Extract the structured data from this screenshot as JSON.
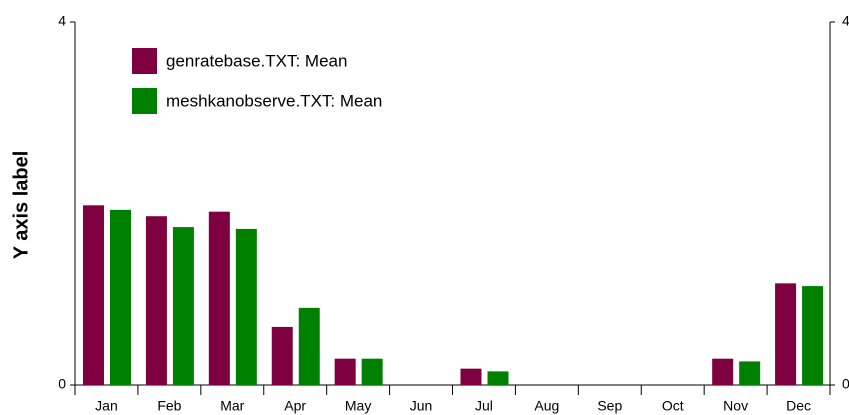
{
  "chart_data": {
    "type": "bar",
    "y_label": "Y axis label",
    "categories": [
      "Jan",
      "Feb",
      "Mar",
      "Apr",
      "May",
      "Jun",
      "Jul",
      "Aug",
      "Sep",
      "Oct",
      "Nov",
      "Dec"
    ],
    "series": [
      {
        "name": "genratebase.TXT: Mean",
        "color": "#7f0040",
        "values": [
          1.98,
          1.86,
          1.91,
          0.64,
          0.29,
          0,
          0.18,
          0,
          0,
          0,
          0.29,
          1.12
        ]
      },
      {
        "name": "meshkanobserve.TXT: Mean",
        "color": "#008000",
        "values": [
          1.93,
          1.74,
          1.72,
          0.85,
          0.29,
          0,
          0.15,
          0,
          0,
          0,
          0.26,
          1.09
        ]
      }
    ],
    "ylim": [
      0,
      4
    ],
    "yticks": [
      0,
      4
    ],
    "y2lim": [
      0,
      4
    ],
    "y2ticks": [
      0,
      4
    ],
    "legend": "top-left"
  }
}
